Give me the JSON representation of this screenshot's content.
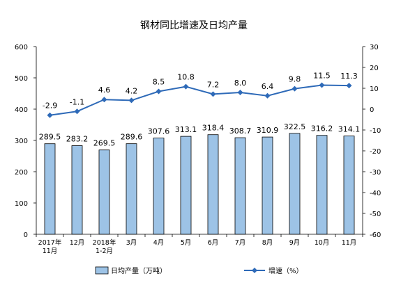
{
  "chart_data": {
    "type": "bar+line",
    "title": "钢材同比增速及日均产量",
    "categories": [
      [
        "2017年",
        "11月"
      ],
      [
        "12月"
      ],
      [
        "2018年",
        "1-2月"
      ],
      [
        "3月"
      ],
      [
        "4月"
      ],
      [
        "5月"
      ],
      [
        "6月"
      ],
      [
        "7月"
      ],
      [
        "8月"
      ],
      [
        "9月"
      ],
      [
        "10月"
      ],
      [
        "11月"
      ]
    ],
    "series": [
      {
        "name": "日均产量（万吨）",
        "type": "bar",
        "axis": "left",
        "color": "#9DC3E6",
        "values": [
          289.5,
          283.2,
          269.5,
          289.6,
          307.6,
          313.1,
          318.4,
          308.7,
          310.9,
          322.5,
          316.2,
          314.1
        ],
        "labels": [
          "289.5",
          "283.2",
          "269.5",
          "289.6",
          "307.6",
          "313.1",
          "318.4",
          "308.7",
          "310.9",
          "322.5",
          "316.2",
          "314.1"
        ]
      },
      {
        "name": "增速（%）",
        "type": "line",
        "axis": "right",
        "color": "#2E6AB8",
        "values": [
          -2.9,
          -1.1,
          4.6,
          4.2,
          8.5,
          10.8,
          7.2,
          8.0,
          6.4,
          9.8,
          11.5,
          11.3
        ],
        "labels": [
          "-2.9",
          "-1.1",
          "4.6",
          "4.2",
          "8.5",
          "10.8",
          "7.2",
          "8.0",
          "6.4",
          "9.8",
          "11.5",
          "11.3"
        ]
      }
    ],
    "y_left": {
      "min": 0,
      "max": 600,
      "ticks": [
        "0",
        "100",
        "200",
        "300",
        "400",
        "500",
        "600"
      ]
    },
    "y_right": {
      "min": -60,
      "max": 30,
      "ticks": [
        "-60",
        "-50",
        "-40",
        "-30",
        "-20",
        "-10",
        "0",
        "10",
        "20",
        "30"
      ]
    },
    "legend": {
      "placement": "bottom"
    },
    "grid": false
  }
}
